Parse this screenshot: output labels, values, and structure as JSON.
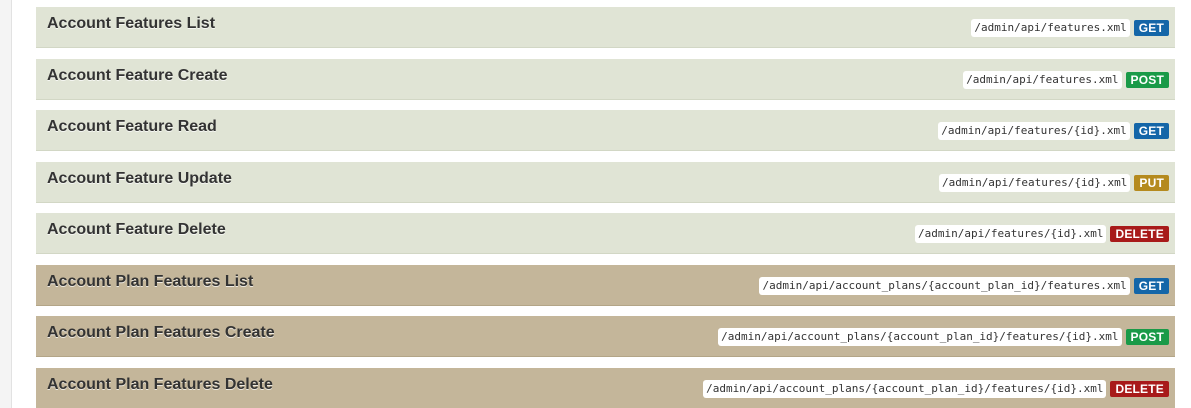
{
  "method_colors": {
    "GET": "#1466a8",
    "POST": "#1a9a48",
    "PUT": "#b58a1e",
    "DELETE": "#a81a1a"
  },
  "panel_colors": {
    "light": "#e0e4d5",
    "dark": "#c4b69a"
  },
  "endpoints": [
    {
      "title": "Account Features List",
      "path": "/admin/api/features.xml",
      "method": "GET",
      "variant": "light"
    },
    {
      "title": "Account Feature Create",
      "path": "/admin/api/features.xml",
      "method": "POST",
      "variant": "light"
    },
    {
      "title": "Account Feature Read",
      "path": "/admin/api/features/{id}.xml",
      "method": "GET",
      "variant": "light"
    },
    {
      "title": "Account Feature Update",
      "path": "/admin/api/features/{id}.xml",
      "method": "PUT",
      "variant": "light"
    },
    {
      "title": "Account Feature Delete",
      "path": "/admin/api/features/{id}.xml",
      "method": "DELETE",
      "variant": "light"
    },
    {
      "title": "Account Plan Features List",
      "path": "/admin/api/account_plans/{account_plan_id}/features.xml",
      "method": "GET",
      "variant": "dark"
    },
    {
      "title": "Account Plan Features Create",
      "path": "/admin/api/account_plans/{account_plan_id}/features/{id}.xml",
      "method": "POST",
      "variant": "dark"
    },
    {
      "title": "Account Plan Features Delete",
      "path": "/admin/api/account_plans/{account_plan_id}/features/{id}.xml",
      "method": "DELETE",
      "variant": "dark"
    }
  ]
}
